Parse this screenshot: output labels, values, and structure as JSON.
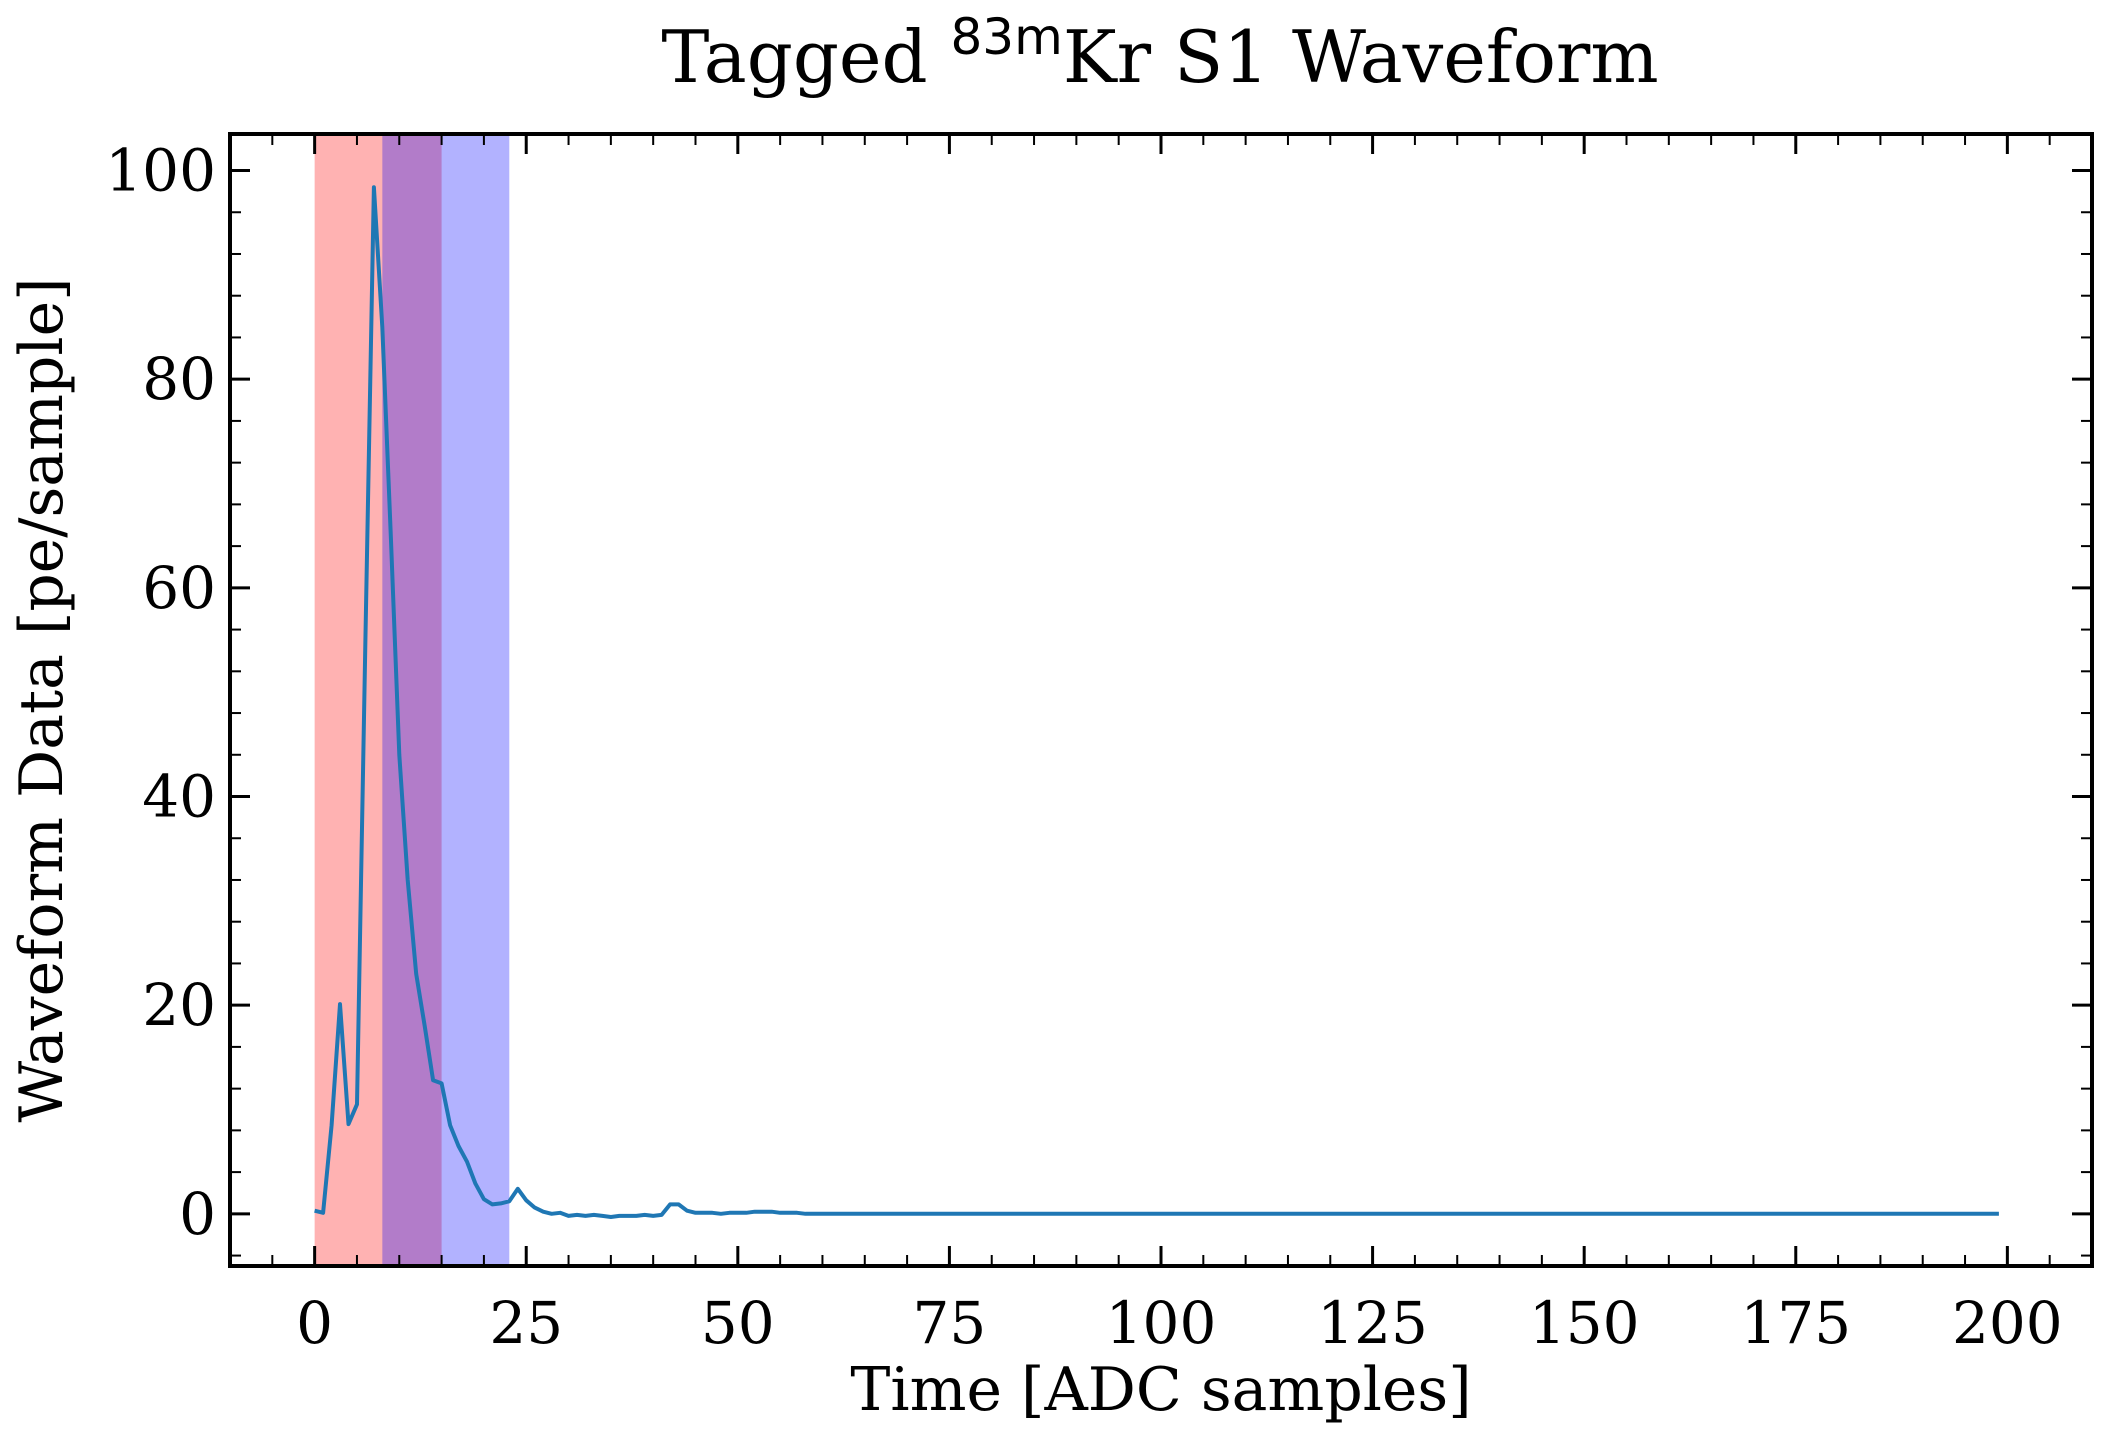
{
  "chart_data": {
    "type": "line",
    "title": {
      "prefix": "Tagged ",
      "superscript": "83m",
      "suffix": "Kr S1 Waveform"
    },
    "xlabel": "Time [ADC samples]",
    "ylabel": "Waveform Data [pe/sample]",
    "xlim": [
      -10,
      210
    ],
    "ylim": [
      -5,
      103.5
    ],
    "xticks": [
      0,
      25,
      50,
      75,
      100,
      125,
      150,
      175,
      200
    ],
    "yticks": [
      0,
      20,
      40,
      60,
      80,
      100
    ],
    "xminor_step": 5,
    "yminor_step": 4,
    "grid": false,
    "line_color": "#1f77b4",
    "shaded_regions": [
      {
        "x0": 0,
        "x1": 15,
        "color": "#ff0000",
        "opacity": 0.3
      },
      {
        "x0": 8,
        "x1": 23,
        "color": "#0000ff",
        "opacity": 0.3
      }
    ],
    "series": [
      {
        "x": [
          0,
          1,
          2,
          3,
          4,
          5,
          6,
          7,
          8,
          9,
          10,
          11,
          12,
          13,
          14,
          15,
          16,
          17,
          18,
          19,
          20,
          21,
          22,
          23,
          24,
          25,
          26,
          27,
          28,
          29,
          30,
          31,
          32,
          33,
          34,
          35,
          36,
          37,
          38,
          39,
          40,
          41,
          42,
          43,
          44,
          45,
          46,
          47,
          48,
          49,
          50,
          51,
          52,
          53,
          54,
          55,
          56,
          57,
          58,
          59,
          60,
          70,
          80,
          90,
          100,
          110,
          120,
          130,
          140,
          150,
          160,
          170,
          180,
          190,
          199
        ],
        "values": [
          0.3,
          0.1,
          8.5,
          20.1,
          8.6,
          10.5,
          55,
          98.4,
          85,
          65,
          44,
          32,
          23,
          18,
          12.8,
          12.5,
          8.5,
          6.5,
          5,
          2.9,
          1.4,
          0.9,
          1.0,
          1.2,
          2.4,
          1.3,
          0.6,
          0.2,
          0.0,
          0.1,
          -0.2,
          -0.1,
          -0.2,
          -0.1,
          -0.2,
          -0.3,
          -0.2,
          -0.2,
          -0.2,
          -0.1,
          -0.2,
          -0.1,
          0.9,
          0.9,
          0.3,
          0.1,
          0.1,
          0.1,
          0.0,
          0.1,
          0.1,
          0.1,
          0.2,
          0.2,
          0.2,
          0.1,
          0.1,
          0.1,
          0.0,
          0.0,
          0.0,
          0.0,
          0.0,
          0.0,
          0.0,
          0.0,
          0.0,
          0.0,
          0.0,
          0.0,
          0.0,
          0.0,
          0.0,
          0.0,
          0.0
        ]
      }
    ]
  }
}
